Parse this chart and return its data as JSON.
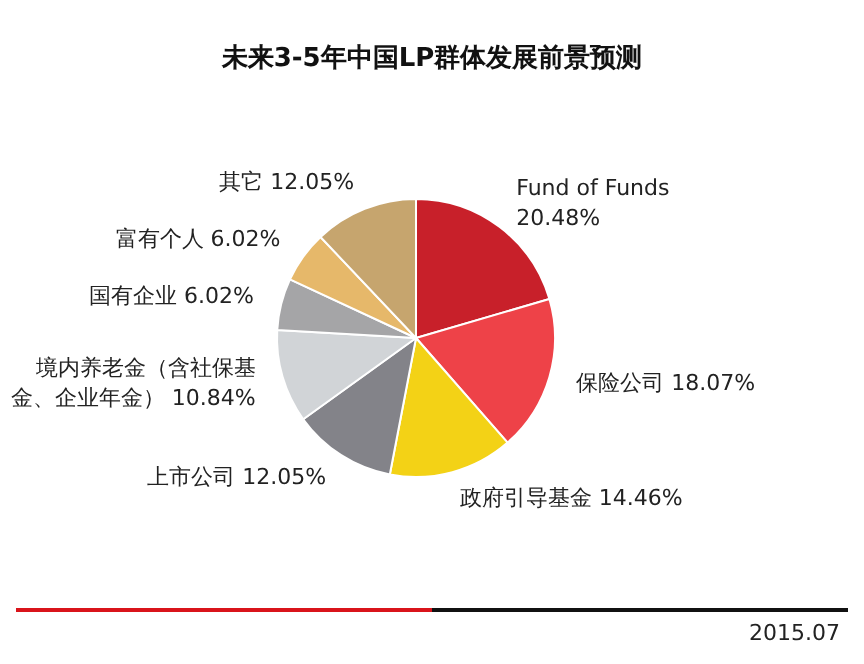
{
  "chart_data": {
    "type": "pie",
    "title": "未来3-5年中国LP群体发展前景预测",
    "categories": [
      "Fund of Funds",
      "保险公司",
      "政府引导基金",
      "上市公司",
      "境内养老金（含社保基金、企业年金）",
      "国有企业",
      "富有个人",
      "其它"
    ],
    "values": [
      20.48,
      18.07,
      14.46,
      12.05,
      10.84,
      6.02,
      6.02,
      12.05
    ],
    "colors": [
      "#c8202a",
      "#ee4248",
      "#f3d216",
      "#838389",
      "#d1d4d7",
      "#a5a5a7",
      "#e6b86a",
      "#c6a56e"
    ],
    "value_labels": [
      "20.48%",
      "18.07%",
      "14.46%",
      "12.05%",
      "10.84%",
      "6.02%",
      "6.02%",
      "12.05%"
    ],
    "legend": false,
    "annotations": [
      "2015.07"
    ]
  }
}
